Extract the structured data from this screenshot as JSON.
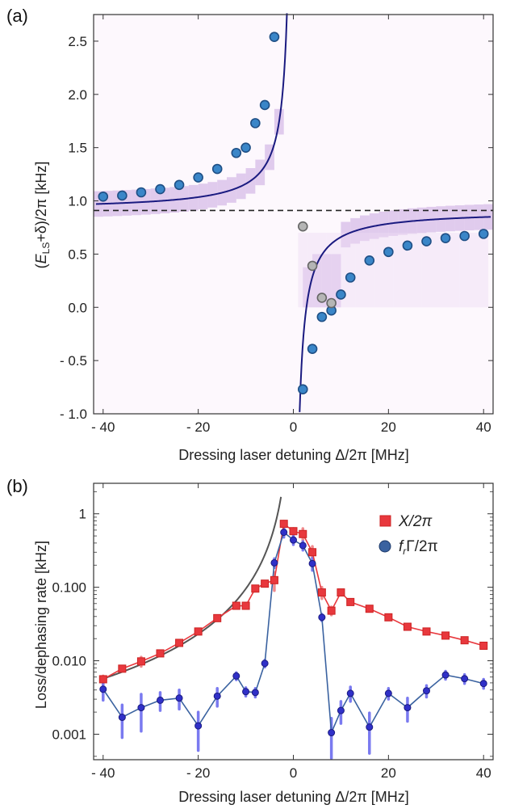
{
  "chart_data": [
    {
      "panel_label": "(a)",
      "type": "scatter",
      "xlabel": "Dressing laser detuning Δ/2π [MHz]",
      "ylabel": "(E_LS+δ)/2π [kHz]",
      "ylabel_parts": [
        "(",
        "E",
        "LS",
        "+δ)/2π [kHz]"
      ],
      "xlim": [
        -42,
        42
      ],
      "ylim": [
        -1.0,
        2.75
      ],
      "xticks": [
        -40,
        -20,
        0,
        20,
        40
      ],
      "xtick_labels": [
        "- 40",
        "- 20",
        "0",
        "20",
        "40"
      ],
      "yticks": [
        -1.0,
        -0.5,
        0.0,
        0.5,
        1.0,
        1.5,
        2.0,
        2.5
      ],
      "ytick_labels": [
        "- 1.0",
        "- 0.5",
        "0.0",
        "0.5",
        "1.0",
        "1.5",
        "2.0",
        "2.5"
      ],
      "dashed_line_y": 0.91,
      "fit_curve": {
        "a": 0.91,
        "b": -2.5,
        "asymptote_x": 0
      },
      "series": [
        {
          "style": "blue",
          "points": [
            [
              -40,
              1.04
            ],
            [
              -36,
              1.05
            ],
            [
              -32,
              1.08
            ],
            [
              -28,
              1.11
            ],
            [
              -24,
              1.15
            ],
            [
              -20,
              1.22
            ],
            [
              -16,
              1.3
            ],
            [
              -12,
              1.45
            ],
            [
              -10,
              1.5
            ],
            [
              -8,
              1.73
            ],
            [
              -6,
              1.9
            ],
            [
              -4,
              2.54
            ],
            [
              2,
              -0.77
            ],
            [
              4,
              -0.39
            ],
            [
              6,
              -0.09
            ],
            [
              8,
              -0.03
            ],
            [
              10,
              0.12
            ],
            [
              12,
              0.28
            ],
            [
              16,
              0.44
            ],
            [
              20,
              0.52
            ],
            [
              24,
              0.58
            ],
            [
              28,
              0.62
            ],
            [
              32,
              0.65
            ],
            [
              36,
              0.67
            ],
            [
              40,
              0.69
            ]
          ]
        },
        {
          "style": "gray",
          "points": [
            [
              2,
              0.76
            ],
            [
              4,
              0.39
            ],
            [
              6,
              0.09
            ],
            [
              8,
              0.04
            ]
          ]
        }
      ]
    },
    {
      "panel_label": "(b)",
      "type": "line",
      "xlabel": "Dressing laser detuning Δ/2π [MHz]",
      "ylabel": "Loss/dephasing rate [kHz]",
      "yscale": "log",
      "xlim": [
        -42,
        42
      ],
      "ylim": [
        0.00045,
        2.6
      ],
      "xticks": [
        -40,
        -20,
        0,
        20,
        40
      ],
      "xtick_labels": [
        "- 40",
        "- 20",
        "0",
        "20",
        "40"
      ],
      "yticks": [
        0.001,
        0.01,
        0.1,
        1
      ],
      "ytick_labels": [
        "0.001",
        "0.010",
        "0.100",
        "1"
      ],
      "legend_position": "top-right",
      "gray_curve": {
        "a": 0.0066,
        "x0": -0.3
      },
      "series": [
        {
          "name": "X/2π",
          "color": "#e8383d",
          "x": [
            -40,
            -36,
            -32,
            -28,
            -24,
            -20,
            -16,
            -12,
            -10,
            -8,
            -6,
            -4,
            -2,
            0,
            2,
            4,
            6,
            8,
            10,
            12,
            16,
            20,
            24,
            28,
            32,
            36,
            40
          ],
          "y": [
            0.0056,
            0.0078,
            0.0098,
            0.0126,
            0.0175,
            0.025,
            0.038,
            0.056,
            0.056,
            0.096,
            0.112,
            0.125,
            0.73,
            0.58,
            0.53,
            0.3,
            0.085,
            0.048,
            0.085,
            0.063,
            0.051,
            0.039,
            0.029,
            0.025,
            0.022,
            0.019,
            0.016
          ],
          "err": [
            0.0006,
            0.0005,
            0.0014,
            0.0005,
            0.0007,
            0.0008,
            0.001,
            0.002,
            0.002,
            0.004,
            0.005,
            0.035,
            0.06,
            0.05,
            0.1,
            0.06,
            0.015,
            0.006,
            0.004,
            0.002,
            0.002,
            0.0015,
            0.001,
            0.001,
            0.001,
            0.001,
            0.0008
          ]
        },
        {
          "name": "f_rΓ/2π",
          "name_parts": [
            "f",
            "r",
            "Γ/2π"
          ],
          "color": "#3a62a0",
          "x": [
            -40,
            -36,
            -32,
            -28,
            -24,
            -20,
            -16,
            -12,
            -10,
            -8,
            -6,
            -4,
            -2,
            0,
            2,
            4,
            6,
            8,
            10,
            12,
            16,
            20,
            24,
            28,
            32,
            36,
            40
          ],
          "y": [
            0.0041,
            0.0017,
            0.0023,
            0.0029,
            0.0031,
            0.0013,
            0.0033,
            0.0062,
            0.0038,
            0.0037,
            0.0092,
            0.215,
            0.56,
            0.44,
            0.37,
            0.21,
            0.039,
            0.00105,
            0.0021,
            0.0036,
            0.00125,
            0.0036,
            0.0023,
            0.0039,
            0.0064,
            0.0057,
            0.0049
          ],
          "err": [
            0.0012,
            0.0008,
            0.0012,
            0.0008,
            0.0009,
            0.0007,
            0.0009,
            0.0007,
            0.0005,
            0.0005,
            0.001,
            0.03,
            0.08,
            0.06,
            0.05,
            0.04,
            0.004,
            0.0006,
            0.0007,
            0.0008,
            0.0007,
            0.0006,
            0.0008,
            0.0007,
            0.0008,
            0.0008,
            0.0007
          ]
        }
      ]
    }
  ]
}
